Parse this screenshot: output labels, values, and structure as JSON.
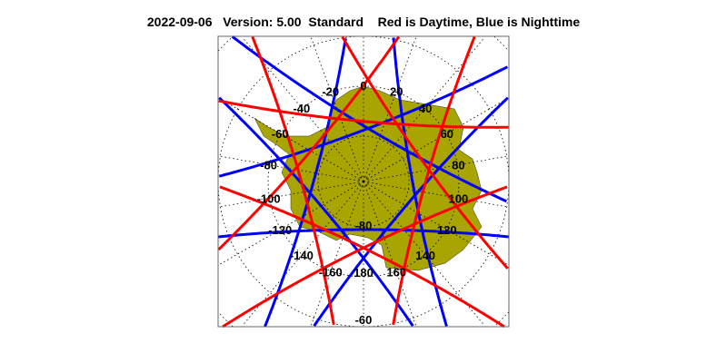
{
  "title": {
    "date": "2022-09-06",
    "version": "Version: 5.00",
    "mode": "Standard",
    "legend": "Red is Daytime, Blue is Nighttime"
  },
  "map": {
    "projection": "south polar stereographic",
    "land_color": "#a8a400",
    "day_color": "#ff0000",
    "night_color": "#0000ff",
    "lon_labels": [
      "0",
      "20",
      "40",
      "60",
      "80",
      "100",
      "120",
      "140",
      "160",
      "180",
      "-160",
      "-140",
      "-120",
      "-100",
      "-80",
      "-60",
      "-40",
      "-20"
    ],
    "lat_labels": [
      "-80",
      "-60"
    ],
    "tracks": [
      {
        "type": "night",
        "closest_lon": -20
      },
      {
        "type": "night",
        "closest_lon": 30
      },
      {
        "type": "night",
        "closest_lon": 80
      },
      {
        "type": "night",
        "closest_lon": 130
      },
      {
        "type": "night",
        "closest_lon": 180
      },
      {
        "type": "night",
        "closest_lon": -130
      },
      {
        "type": "night",
        "closest_lon": -75
      },
      {
        "type": "day",
        "closest_lon": 5
      },
      {
        "type": "day",
        "closest_lon": 55
      },
      {
        "type": "day",
        "closest_lon": 105
      },
      {
        "type": "day",
        "closest_lon": 155
      },
      {
        "type": "day",
        "closest_lon": -155
      },
      {
        "type": "day",
        "closest_lon": -105
      },
      {
        "type": "day",
        "closest_lon": -50
      }
    ]
  }
}
